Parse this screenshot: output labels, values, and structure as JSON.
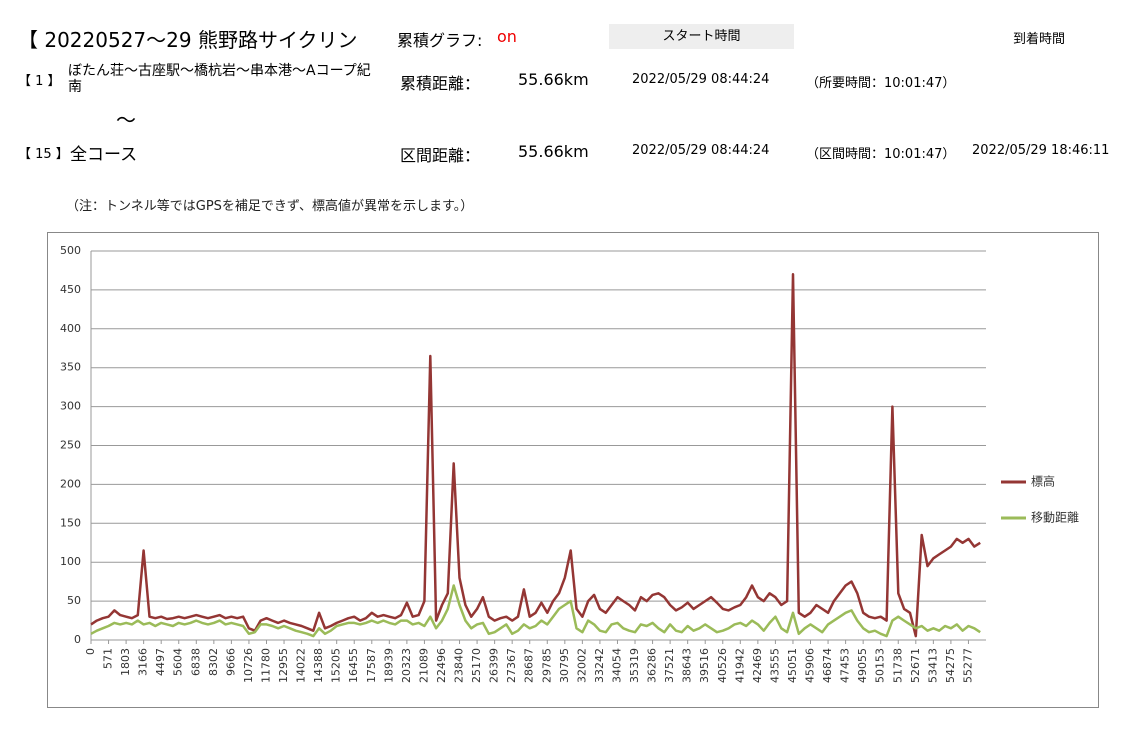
{
  "header": {
    "title": "【 20220527～29 熊野路サイクリン",
    "graph_label": "累積グラフ:",
    "graph_state": "on",
    "start_label": "スタート時間",
    "end_label": "到着時間",
    "row1": {
      "index": "【 1 】",
      "name": "ぼたん荘～古座駅～橋杭岩～串本港～Aコープ紀南",
      "dist_label": "累積距離：",
      "dist": "55.66km",
      "start": "2022/05/29 08:44:24",
      "duration": "（所要時間：10:01:47）"
    },
    "tilde": "～",
    "row2": {
      "index": "【 15 】",
      "name": "全コース",
      "dist_label": "区間距離：",
      "dist": "55.66km",
      "start": "2022/05/29 08:44:24",
      "duration": "（区間時間：10:01:47）",
      "end": "2022/05/29 18:46:11"
    },
    "note": "（注：トンネル等ではGPSを補足できず、標高値が異常を示します。）"
  },
  "chart_data": {
    "type": "line",
    "grid": true,
    "legend": "right",
    "ylim": [
      0,
      500
    ],
    "yticks": [
      0,
      50,
      100,
      150,
      200,
      250,
      300,
      350,
      400,
      450,
      500
    ],
    "categories": [
      "0",
      null,
      null,
      "571",
      null,
      null,
      "1803",
      null,
      null,
      "3166",
      null,
      null,
      "4497",
      null,
      null,
      "5604",
      null,
      null,
      "6838",
      null,
      null,
      "8302",
      null,
      null,
      "9666",
      null,
      null,
      "10726",
      null,
      null,
      "11780",
      null,
      null,
      "12955",
      null,
      null,
      "14022",
      null,
      null,
      "14388",
      null,
      null,
      "15205",
      null,
      null,
      "16455",
      null,
      null,
      "17587",
      null,
      null,
      "18939",
      null,
      null,
      "20323",
      null,
      null,
      "21089",
      null,
      null,
      "22496",
      null,
      null,
      "23840",
      null,
      null,
      "25170",
      null,
      null,
      "26399",
      null,
      null,
      "27367",
      null,
      null,
      "28687",
      null,
      null,
      "29785",
      null,
      null,
      "30795",
      null,
      null,
      "32002",
      null,
      null,
      "33242",
      null,
      null,
      "34054",
      null,
      null,
      "35319",
      null,
      null,
      "36286",
      null,
      null,
      "37521",
      null,
      null,
      "38643",
      null,
      null,
      "39516",
      null,
      null,
      "40526",
      null,
      null,
      "41942",
      null,
      null,
      "42469",
      null,
      null,
      "43555",
      null,
      null,
      "45051",
      null,
      null,
      "45906",
      null,
      null,
      "46874",
      null,
      null,
      "47453",
      null,
      null,
      "49055",
      null,
      null,
      "50153",
      null,
      null,
      "51738",
      null,
      null,
      "52671",
      null,
      null,
      "53413",
      null,
      null,
      "54275",
      null,
      null,
      "55277",
      null,
      null
    ],
    "series": [
      {
        "name": "標高",
        "color": "#943634",
        "values": [
          20,
          25,
          28,
          30,
          38,
          32,
          30,
          28,
          32,
          115,
          30,
          28,
          30,
          27,
          28,
          30,
          28,
          30,
          32,
          30,
          28,
          30,
          32,
          28,
          30,
          28,
          30,
          15,
          12,
          25,
          28,
          25,
          22,
          25,
          22,
          20,
          18,
          15,
          12,
          35,
          15,
          18,
          22,
          25,
          28,
          30,
          25,
          28,
          35,
          30,
          32,
          30,
          28,
          32,
          48,
          30,
          32,
          50,
          365,
          25,
          45,
          60,
          227,
          80,
          45,
          30,
          40,
          55,
          30,
          25,
          28,
          30,
          25,
          30,
          65,
          30,
          35,
          48,
          35,
          50,
          60,
          80,
          115,
          40,
          30,
          50,
          58,
          40,
          35,
          45,
          55,
          50,
          45,
          38,
          55,
          50,
          58,
          60,
          55,
          45,
          38,
          42,
          48,
          40,
          45,
          50,
          55,
          48,
          40,
          38,
          42,
          45,
          55,
          70,
          55,
          50,
          60,
          55,
          45,
          50,
          470,
          35,
          30,
          35,
          45,
          40,
          35,
          50,
          60,
          70,
          75,
          60,
          35,
          30,
          28,
          30,
          25,
          300,
          60,
          40,
          35,
          5,
          135,
          95,
          105,
          110,
          115,
          120,
          130,
          125,
          130,
          120,
          125
        ]
      },
      {
        "name": "移動距離",
        "color": "#9bbb59",
        "values": [
          8,
          12,
          15,
          18,
          22,
          20,
          22,
          20,
          25,
          20,
          22,
          18,
          22,
          20,
          18,
          22,
          20,
          22,
          25,
          22,
          20,
          22,
          25,
          20,
          22,
          20,
          18,
          8,
          10,
          20,
          20,
          18,
          15,
          18,
          15,
          12,
          10,
          8,
          5,
          15,
          8,
          12,
          18,
          20,
          22,
          22,
          20,
          22,
          25,
          22,
          25,
          22,
          20,
          25,
          25,
          20,
          22,
          18,
          30,
          15,
          25,
          40,
          70,
          45,
          25,
          15,
          20,
          22,
          8,
          10,
          15,
          20,
          8,
          12,
          20,
          15,
          18,
          25,
          20,
          30,
          40,
          45,
          50,
          15,
          10,
          25,
          20,
          12,
          10,
          20,
          22,
          15,
          12,
          10,
          20,
          18,
          22,
          15,
          10,
          20,
          12,
          10,
          18,
          12,
          15,
          20,
          15,
          10,
          12,
          15,
          20,
          22,
          18,
          25,
          20,
          12,
          22,
          30,
          15,
          10,
          35,
          8,
          15,
          20,
          15,
          10,
          20,
          25,
          30,
          35,
          38,
          25,
          15,
          10,
          12,
          8,
          5,
          25,
          30,
          25,
          20,
          15,
          18,
          12,
          15,
          12,
          18,
          15,
          20,
          12,
          18,
          15,
          10
        ]
      }
    ]
  }
}
